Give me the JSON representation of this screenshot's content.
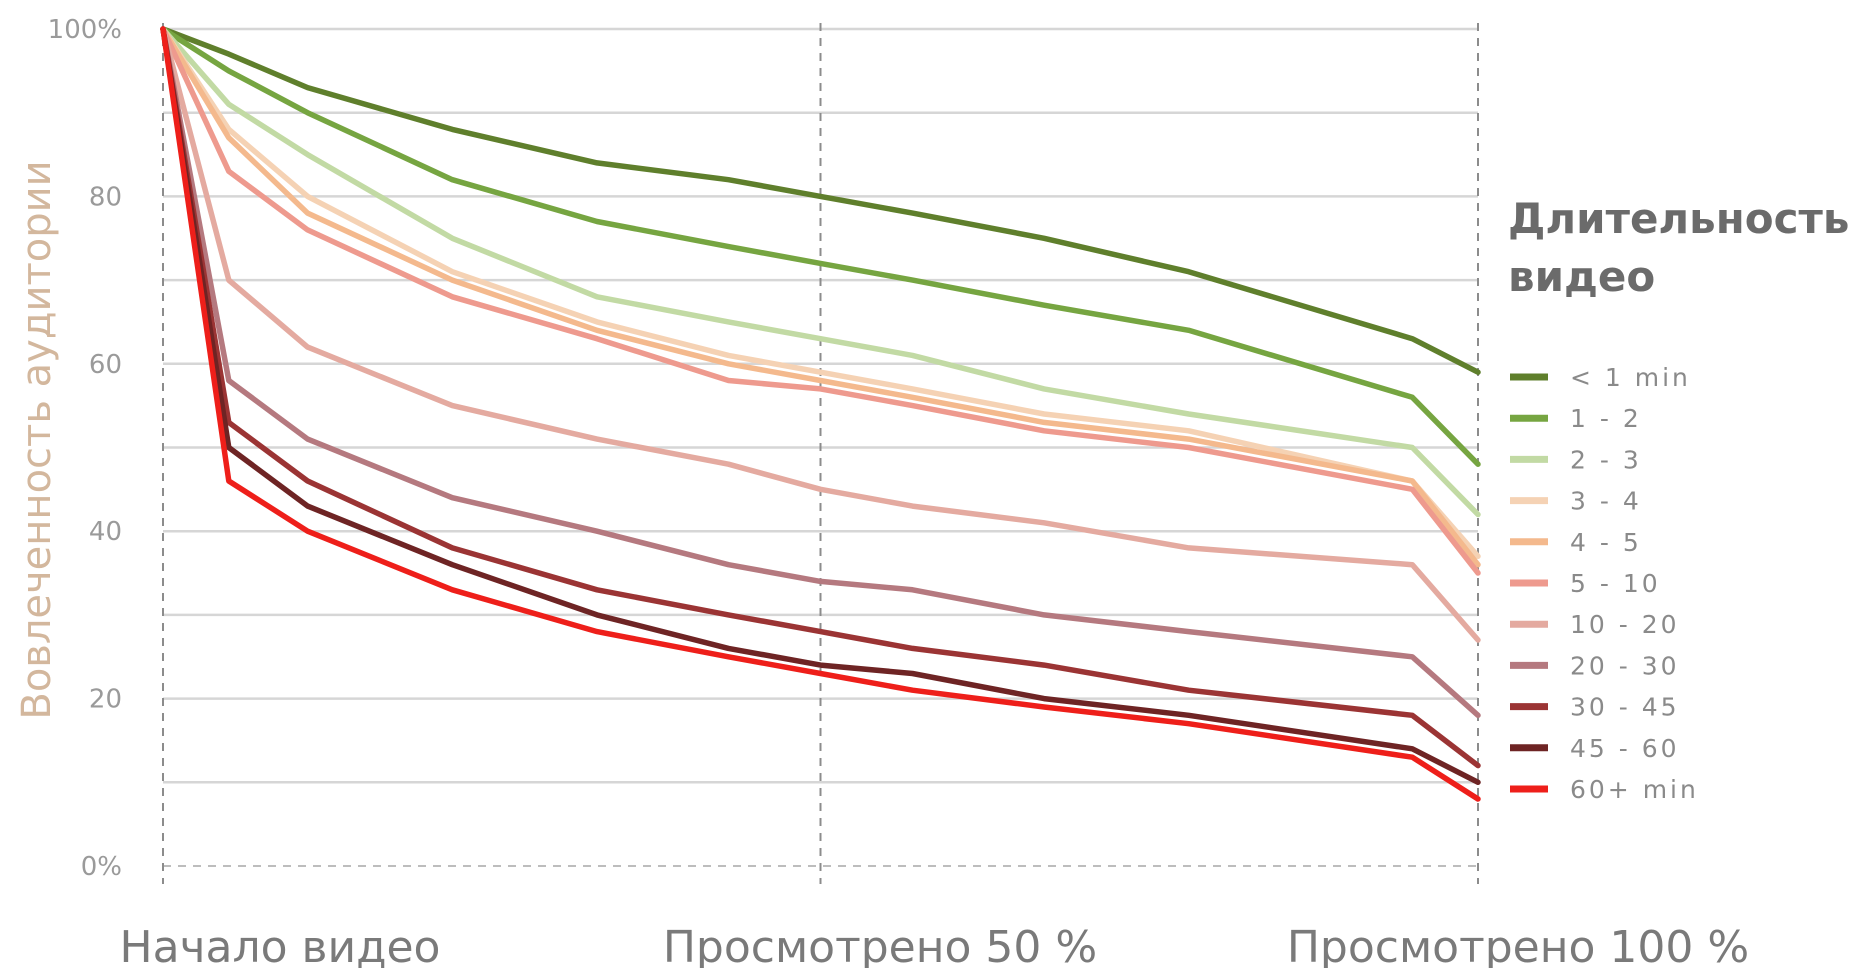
{
  "chart_data": {
    "type": "line",
    "title": "",
    "ylabel": "Вовлеченность аудитории",
    "xlabel": "",
    "x_tick_labels": [
      "Начало видео",
      "Просмотрено 50 %",
      "Просмотрено 100 %"
    ],
    "y_tick_labels": [
      "0%",
      "20",
      "40",
      "60",
      "80",
      "100%"
    ],
    "ylim": [
      0,
      100
    ],
    "xlim": [
      0,
      100
    ],
    "grid": true,
    "legend": {
      "title": "Длительность видео",
      "placement": "right"
    },
    "x": [
      0,
      5,
      11,
      22,
      33,
      43,
      50,
      57,
      67,
      78,
      95,
      100
    ],
    "series": [
      {
        "name": "< 1 min",
        "color": "#5f7f2c",
        "values": [
          100,
          97,
          93,
          88,
          84,
          82,
          80,
          78,
          75,
          71,
          63,
          59
        ]
      },
      {
        "name": "1 - 2",
        "color": "#76a541",
        "values": [
          100,
          95,
          90,
          82,
          77,
          74,
          72,
          70,
          67,
          64,
          56,
          48
        ]
      },
      {
        "name": "2 - 3",
        "color": "#c2daa4",
        "values": [
          100,
          91,
          85,
          75,
          68,
          65,
          63,
          61,
          57,
          54,
          50,
          42
        ]
      },
      {
        "name": "3 - 4",
        "color": "#f5d2b4",
        "values": [
          100,
          88,
          80,
          71,
          65,
          61,
          59,
          57,
          54,
          52,
          46,
          37
        ]
      },
      {
        "name": "4 - 5",
        "color": "#f4b98d",
        "values": [
          100,
          87,
          78,
          70,
          64,
          60,
          58,
          56,
          53,
          51,
          46,
          36
        ]
      },
      {
        "name": "5 - 10",
        "color": "#ee9a8e",
        "values": [
          100,
          83,
          76,
          68,
          63,
          58,
          57,
          55,
          52,
          50,
          45,
          35
        ]
      },
      {
        "name": "10 - 20",
        "color": "#e4aaa0",
        "values": [
          100,
          70,
          62,
          55,
          51,
          48,
          45,
          43,
          41,
          38,
          36,
          27
        ]
      },
      {
        "name": "20 - 30",
        "color": "#b5797f",
        "values": [
          100,
          58,
          51,
          44,
          40,
          36,
          34,
          33,
          30,
          28,
          25,
          18
        ]
      },
      {
        "name": "30 - 45",
        "color": "#9b3434",
        "values": [
          100,
          53,
          46,
          38,
          33,
          30,
          28,
          26,
          24,
          21,
          18,
          12
        ]
      },
      {
        "name": "45 - 60",
        "color": "#6e2424",
        "values": [
          100,
          50,
          43,
          36,
          30,
          26,
          24,
          23,
          20,
          18,
          14,
          10
        ]
      },
      {
        "name": "60+ min",
        "color": "#ee1f1a",
        "values": [
          100,
          46,
          40,
          33,
          28,
          25,
          23,
          21,
          19,
          17,
          13,
          8
        ]
      }
    ]
  }
}
